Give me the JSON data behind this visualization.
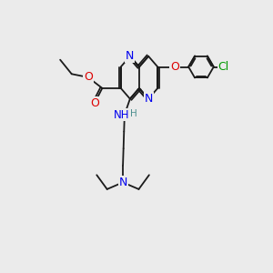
{
  "bg_color": "#ebebeb",
  "bond_color": "#1a1a1a",
  "bond_lw": 1.3,
  "N_color": "#0000ee",
  "O_color": "#dd0000",
  "Cl_color": "#009900",
  "H_color": "#4e9090",
  "font_size": 9.0,
  "dpi": 100,
  "figsize": [
    3.0,
    3.0
  ],
  "xlim": [
    0,
    10
  ],
  "ylim": [
    0,
    10
  ]
}
